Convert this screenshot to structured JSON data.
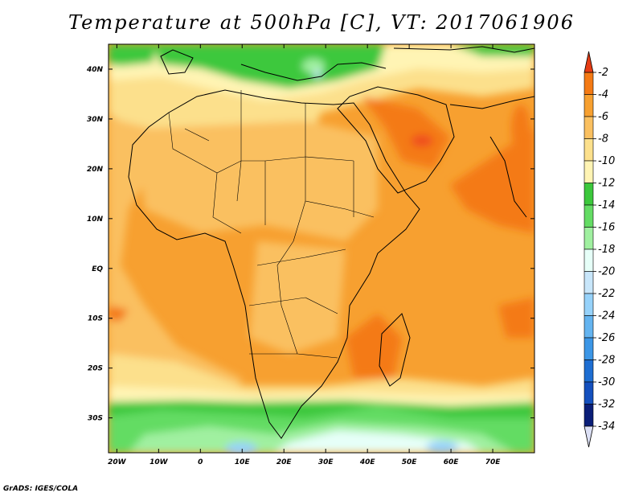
{
  "title": "Temperature at 500hPa [C], VT: 2017061906",
  "credit": "GrADS: IGES/COLA",
  "map": {
    "lon_range": [
      -22,
      80
    ],
    "lat_range": [
      -37,
      45
    ],
    "lon_ticks": [
      {
        "value": -20,
        "label": "20W"
      },
      {
        "value": -10,
        "label": "10W"
      },
      {
        "value": 0,
        "label": "0"
      },
      {
        "value": 10,
        "label": "10E"
      },
      {
        "value": 20,
        "label": "20E"
      },
      {
        "value": 30,
        "label": "30E"
      },
      {
        "value": 40,
        "label": "40E"
      },
      {
        "value": 50,
        "label": "50E"
      },
      {
        "value": 60,
        "label": "60E"
      },
      {
        "value": 70,
        "label": "70E"
      }
    ],
    "lat_ticks": [
      {
        "value": 40,
        "label": "40N"
      },
      {
        "value": 30,
        "label": "30N"
      },
      {
        "value": 20,
        "label": "20N"
      },
      {
        "value": 10,
        "label": "10N"
      },
      {
        "value": 0,
        "label": "EQ"
      },
      {
        "value": -10,
        "label": "10S"
      },
      {
        "value": -20,
        "label": "20S"
      },
      {
        "value": -30,
        "label": "30S"
      }
    ]
  },
  "colorbar": {
    "levels": [
      "-2",
      "-4",
      "-6",
      "-8",
      "-10",
      "-12",
      "-14",
      "-16",
      "-18",
      "-20",
      "-22",
      "-24",
      "-26",
      "-28",
      "-30",
      "-32",
      "-34"
    ],
    "colors": [
      "#f0501e",
      "#f47a14",
      "#f7a030",
      "#fac060",
      "#fce08c",
      "#fff4b4",
      "#3cc83c",
      "#64dc64",
      "#a0f0a0",
      "#e6fff8",
      "#c8e6fa",
      "#96d2fa",
      "#64b4f0",
      "#3c96e6",
      "#1e6ed2",
      "#1450be",
      "#0a1e78"
    ],
    "top_color": "#e63c14",
    "bottom_color": "#dce0f5"
  }
}
